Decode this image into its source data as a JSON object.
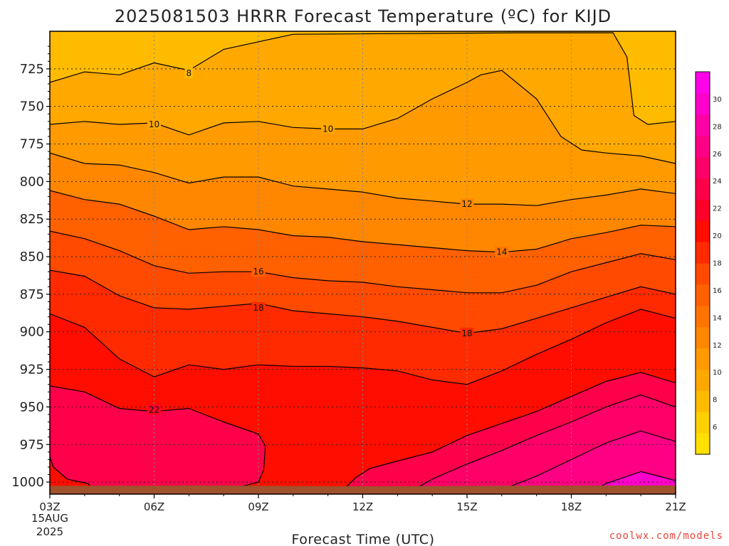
{
  "chart_data": {
    "type": "heatmap",
    "title": "2025081503 HRRR Forecast Temperature (ºC) for KIJD",
    "xlabel": "Forecast Time (UTC)",
    "ylabel": "",
    "x_ticks": [
      "03Z",
      "06Z",
      "09Z",
      "12Z",
      "15Z",
      "18Z",
      "21Z"
    ],
    "x_start_sublabel": [
      "15AUG",
      "2025"
    ],
    "x_hours": [
      3,
      21
    ],
    "y_ticks": [
      725,
      750,
      775,
      800,
      825,
      850,
      875,
      900,
      925,
      950,
      975,
      1000
    ],
    "ylim": [
      700,
      1008
    ],
    "grid": true,
    "colorbar": {
      "ticks": [
        6,
        8,
        10,
        12,
        14,
        16,
        18,
        20,
        22,
        24,
        26,
        28,
        30
      ],
      "range": [
        4,
        32
      ],
      "colors": [
        "#ffe000",
        "#ffd000",
        "#ffbb00",
        "#ffa800",
        "#ff9a00",
        "#ff8700",
        "#ff7400",
        "#ff6000",
        "#ff4a00",
        "#ff2a00",
        "#ff0d00",
        "#ff0028",
        "#ff004a",
        "#ff0068",
        "#ff0084",
        "#ff00a6",
        "#ff00cc",
        "#ff00e8"
      ]
    },
    "surface_color": "#a0522d",
    "isotherms": [
      {
        "value": 8,
        "labels": [
          {
            "hour": 7.0,
            "p": 728
          }
        ],
        "points": [
          [
            3,
            734
          ],
          [
            4,
            727
          ],
          [
            5,
            729
          ],
          [
            6,
            721
          ],
          [
            7,
            726
          ],
          [
            8,
            712
          ],
          [
            9,
            707
          ],
          [
            10,
            702
          ],
          [
            16.5,
            701
          ],
          [
            19.2,
            701
          ],
          [
            19.6,
            717
          ],
          [
            19.8,
            756
          ],
          [
            20.2,
            762
          ],
          [
            21,
            760
          ]
        ]
      },
      {
        "value": 10,
        "labels": [
          {
            "hour": 6.0,
            "p": 762
          },
          {
            "hour": 11.0,
            "p": 765
          }
        ],
        "points": [
          [
            3,
            762
          ],
          [
            4,
            760
          ],
          [
            5,
            762
          ],
          [
            6,
            761
          ],
          [
            7,
            769
          ],
          [
            8,
            761
          ],
          [
            9,
            760
          ],
          [
            10,
            764
          ],
          [
            11,
            765
          ],
          [
            12,
            765
          ],
          [
            13,
            758
          ],
          [
            14,
            745
          ],
          [
            15,
            734
          ],
          [
            15.4,
            729
          ],
          [
            16.0,
            726
          ],
          [
            17.0,
            745
          ],
          [
            17.7,
            770
          ],
          [
            18.3,
            779
          ],
          [
            19.0,
            781
          ],
          [
            20.0,
            783
          ],
          [
            21,
            788
          ]
        ]
      },
      {
        "value": 12,
        "labels": [
          {
            "hour": 15.0,
            "p": 815
          }
        ],
        "points": [
          [
            3,
            781
          ],
          [
            4,
            788
          ],
          [
            5,
            789
          ],
          [
            6,
            794
          ],
          [
            7,
            801
          ],
          [
            8,
            797
          ],
          [
            9,
            797
          ],
          [
            10,
            803
          ],
          [
            11,
            805
          ],
          [
            12,
            807
          ],
          [
            13,
            811
          ],
          [
            14,
            813
          ],
          [
            15,
            815
          ],
          [
            16,
            815
          ],
          [
            17,
            816
          ],
          [
            18,
            812
          ],
          [
            19,
            809
          ],
          [
            20,
            805
          ],
          [
            21,
            808
          ]
        ]
      },
      {
        "value": 14,
        "labels": [
          {
            "hour": 16.0,
            "p": 847
          }
        ],
        "points": [
          [
            3,
            806
          ],
          [
            4,
            812
          ],
          [
            5,
            815
          ],
          [
            6,
            823
          ],
          [
            7,
            832
          ],
          [
            8,
            830
          ],
          [
            9,
            832
          ],
          [
            10,
            836
          ],
          [
            11,
            837
          ],
          [
            12,
            840
          ],
          [
            13,
            842
          ],
          [
            14,
            844
          ],
          [
            15,
            846
          ],
          [
            16,
            847
          ],
          [
            17,
            845
          ],
          [
            18,
            838
          ],
          [
            19,
            834
          ],
          [
            20,
            829
          ],
          [
            21,
            830
          ]
        ]
      },
      {
        "value": 16,
        "labels": [
          {
            "hour": 9.0,
            "p": 860
          }
        ],
        "points": [
          [
            3,
            833
          ],
          [
            4,
            838
          ],
          [
            5,
            846
          ],
          [
            6,
            856
          ],
          [
            7,
            861
          ],
          [
            8,
            860
          ],
          [
            9,
            860
          ],
          [
            10,
            864
          ],
          [
            11,
            866
          ],
          [
            12,
            867
          ],
          [
            13,
            870
          ],
          [
            14,
            872
          ],
          [
            15,
            874
          ],
          [
            16,
            874
          ],
          [
            17,
            869
          ],
          [
            18,
            860
          ],
          [
            19,
            854
          ],
          [
            20,
            848
          ],
          [
            21,
            852
          ]
        ]
      },
      {
        "value": 18,
        "labels": [
          {
            "hour": 9.0,
            "p": 884
          },
          {
            "hour": 15.0,
            "p": 901
          }
        ],
        "points": [
          [
            3,
            859
          ],
          [
            4,
            863
          ],
          [
            5,
            876
          ],
          [
            6,
            884
          ],
          [
            7,
            885
          ],
          [
            8,
            883
          ],
          [
            9,
            881
          ],
          [
            10,
            886
          ],
          [
            11,
            888
          ],
          [
            12,
            890
          ],
          [
            13,
            893
          ],
          [
            14,
            897
          ],
          [
            15,
            901
          ],
          [
            16,
            898
          ],
          [
            17,
            891
          ],
          [
            18,
            884
          ],
          [
            19,
            877
          ],
          [
            20,
            870
          ],
          [
            21,
            875
          ]
        ]
      },
      {
        "value": 20,
        "labels": [],
        "points": [
          [
            3,
            888
          ],
          [
            4,
            897
          ],
          [
            5,
            918
          ],
          [
            6,
            930
          ],
          [
            7,
            922
          ],
          [
            8,
            925
          ],
          [
            9,
            922
          ],
          [
            10,
            923
          ],
          [
            11,
            923
          ],
          [
            12,
            924
          ],
          [
            13,
            926
          ],
          [
            14,
            932
          ],
          [
            15,
            935
          ],
          [
            16,
            926
          ],
          [
            17,
            915
          ],
          [
            18,
            905
          ],
          [
            19,
            894
          ],
          [
            20,
            885
          ],
          [
            21,
            891
          ]
        ]
      },
      {
        "value": 22,
        "labels": [
          {
            "hour": 6.0,
            "p": 952
          }
        ],
        "points": [
          [
            3,
            936
          ],
          [
            4,
            940
          ],
          [
            5,
            951
          ],
          [
            6,
            953
          ],
          [
            7,
            951
          ],
          [
            8,
            960
          ],
          [
            9,
            968
          ],
          [
            9.2,
            976
          ],
          [
            9.15,
            992
          ],
          [
            9.0,
            1000
          ],
          [
            8.5,
            1003
          ],
          [
            8,
            1005
          ],
          [
            7,
            1005
          ],
          [
            6,
            1005
          ],
          [
            5,
            1004
          ],
          [
            4.2,
            1004
          ],
          [
            4.1,
            1001
          ],
          [
            3.5,
            998
          ],
          [
            3.1,
            990
          ],
          [
            3,
            983
          ]
        ]
      },
      {
        "value": 22,
        "labels": [],
        "points": [
          [
            11.4,
            1006
          ],
          [
            11.8,
            997
          ],
          [
            12.2,
            991
          ],
          [
            13,
            986
          ],
          [
            14,
            980
          ],
          [
            15,
            969
          ],
          [
            16,
            961
          ],
          [
            17,
            953
          ],
          [
            18,
            943
          ],
          [
            19,
            933
          ],
          [
            20,
            927
          ],
          [
            21,
            934
          ]
        ]
      },
      {
        "value": 24,
        "labels": [],
        "points": [
          [
            13.4,
            1006
          ],
          [
            14,
            998
          ],
          [
            15,
            988
          ],
          [
            16,
            979
          ],
          [
            17,
            969
          ],
          [
            18,
            960
          ],
          [
            19,
            950
          ],
          [
            20,
            942
          ],
          [
            21,
            950
          ]
        ]
      },
      {
        "value": 26,
        "labels": [],
        "points": [
          [
            15.9,
            1006
          ],
          [
            17,
            996
          ],
          [
            18,
            985
          ],
          [
            19,
            974
          ],
          [
            20,
            966
          ],
          [
            21,
            973
          ]
        ]
      },
      {
        "value": 28,
        "labels": [],
        "points": [
          [
            18.6,
            1006
          ],
          [
            19,
            1001
          ],
          [
            20,
            993
          ],
          [
            21,
            999
          ]
        ]
      }
    ]
  },
  "credit": "coolwx.com/models"
}
